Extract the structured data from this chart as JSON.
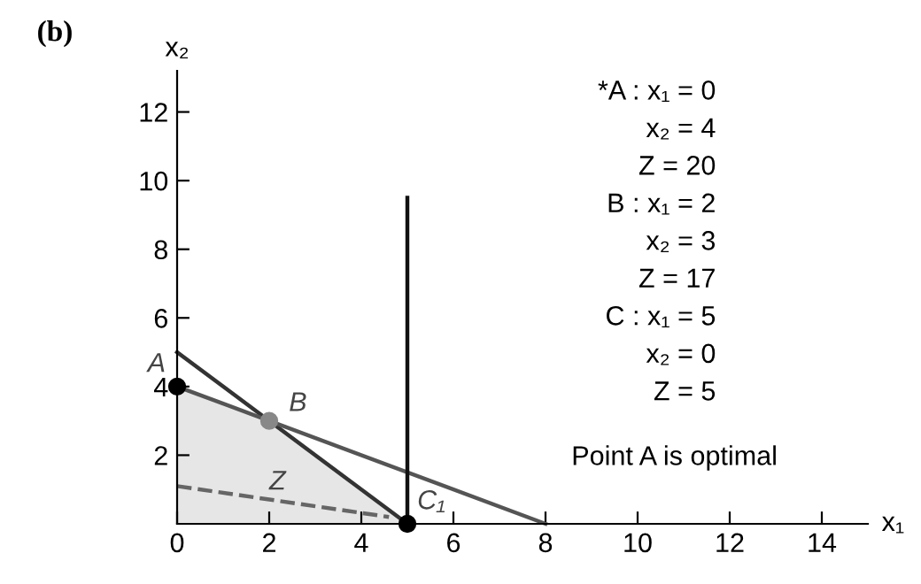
{
  "chart_data": {
    "type": "line",
    "title": "(b)",
    "xlabel": "x₁",
    "ylabel": "x₂",
    "xlim": [
      0,
      15
    ],
    "ylim": [
      0,
      13.2
    ],
    "xticks": [
      0,
      2,
      4,
      6,
      8,
      10,
      12,
      14
    ],
    "yticks": [
      2,
      4,
      6,
      8,
      10,
      12
    ],
    "grid": false,
    "series": [
      {
        "type": "area",
        "color": "#e6e6e6",
        "x": [
          0,
          2,
          5
        ],
        "values": [
          4,
          3,
          0
        ]
      },
      {
        "color": "#333333",
        "x": [
          0,
          5
        ],
        "values": [
          5,
          0
        ]
      },
      {
        "color": "#555555",
        "x": [
          0,
          8
        ],
        "values": [
          4,
          0
        ]
      },
      {
        "color": "#111111",
        "x": [
          5,
          5
        ],
        "values": [
          0,
          9.5
        ]
      },
      {
        "color": "#666666",
        "line_style": "dashed",
        "x": [
          0,
          4.6
        ],
        "values": [
          1.1,
          0.2
        ]
      },
      {
        "type": "scatter",
        "color": "#000000",
        "marker": "circle",
        "x": [
          0,
          5
        ],
        "values": [
          4,
          0
        ]
      },
      {
        "type": "scatter",
        "color": "#888888",
        "marker": "circle",
        "x": [
          2
        ],
        "values": [
          3
        ]
      }
    ],
    "annotations": [
      {
        "text": "A",
        "x": 0,
        "y": 4
      },
      {
        "text": "B",
        "x": 2,
        "y": 3
      },
      {
        "text": "C₁",
        "x": 5,
        "y": 0
      },
      {
        "text": "Z",
        "x": 2,
        "y": 1
      },
      "*A : x₁ = 0",
      "x₂ = 4",
      "Z = 20",
      "B : x₁ = 2",
      "x₂ = 3",
      "Z = 17",
      "C : x₁ = 5",
      "x₂ = 0",
      "Z = 5",
      "Point A is optimal"
    ]
  }
}
